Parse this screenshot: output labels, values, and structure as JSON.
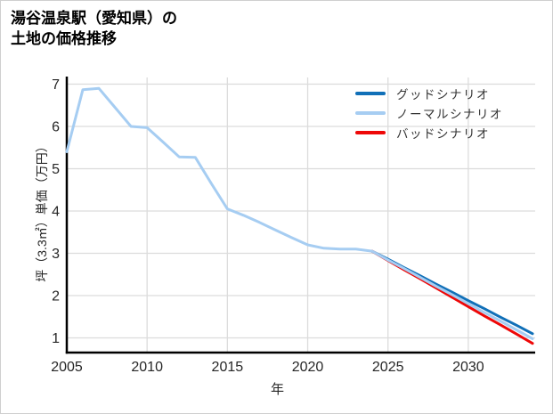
{
  "title": {
    "line1": "湯谷温泉駅（愛知県）の",
    "line2": "土地の価格推移"
  },
  "colors": {
    "good": "#1170b8",
    "normal": "#a6cdf2",
    "bad": "#ee0808",
    "grid": "#dcdcdc",
    "axis": "#000000",
    "tick_text": "#262626",
    "legend_text": "#333333"
  },
  "legend": {
    "items": [
      {
        "label": "グッドシナリオ",
        "color": "#1170b8"
      },
      {
        "label": "ノーマルシナリオ",
        "color": "#a6cdf2"
      },
      {
        "label": "バッドシナリオ",
        "color": "#ee0808"
      }
    ]
  },
  "chart_data": {
    "type": "line",
    "title": "湯谷温泉駅（愛知県）の土地の価格推移",
    "xlabel": "年",
    "ylabel": "坪（3.3㎡）単価（万円）",
    "xlim": [
      2005,
      2034
    ],
    "ylim": [
      0.65,
      7.2
    ],
    "x_ticks": [
      2005,
      2010,
      2015,
      2020,
      2025,
      2030
    ],
    "y_ticks": [
      1,
      2,
      3,
      4,
      5,
      6,
      7
    ],
    "grid": true,
    "legend_position": "top-right",
    "series": [
      {
        "name": "グッドシナリオ",
        "color": "#1170b8",
        "x": [
          2024,
          2025,
          2026,
          2027,
          2028,
          2029,
          2030,
          2031,
          2032,
          2033,
          2034
        ],
        "values": [
          3.05,
          2.86,
          2.66,
          2.47,
          2.27,
          2.08,
          1.88,
          1.69,
          1.49,
          1.3,
          1.1
        ]
      },
      {
        "name": "ノーマルシナリオ",
        "color": "#a6cdf2",
        "x": [
          2005,
          2006,
          2007,
          2008,
          2009,
          2010,
          2011,
          2012,
          2013,
          2014,
          2015,
          2016,
          2017,
          2018,
          2019,
          2020,
          2021,
          2022,
          2023,
          2024,
          2025,
          2026,
          2027,
          2028,
          2029,
          2030,
          2031,
          2032,
          2033,
          2034
        ],
        "values": [
          5.4,
          6.87,
          6.9,
          6.45,
          6.0,
          5.97,
          5.63,
          5.28,
          5.27,
          4.65,
          4.05,
          3.9,
          3.73,
          3.55,
          3.37,
          3.2,
          3.12,
          3.1,
          3.1,
          3.05,
          2.84,
          2.64,
          2.43,
          2.22,
          2.02,
          1.81,
          1.6,
          1.4,
          1.19,
          0.98
        ]
      },
      {
        "name": "バッドシナリオ",
        "color": "#ee0808",
        "x": [
          2024,
          2025,
          2026,
          2027,
          2028,
          2029,
          2030,
          2031,
          2032,
          2033,
          2034
        ],
        "values": [
          3.05,
          2.83,
          2.61,
          2.4,
          2.18,
          1.96,
          1.74,
          1.52,
          1.31,
          1.09,
          0.87
        ]
      }
    ]
  }
}
